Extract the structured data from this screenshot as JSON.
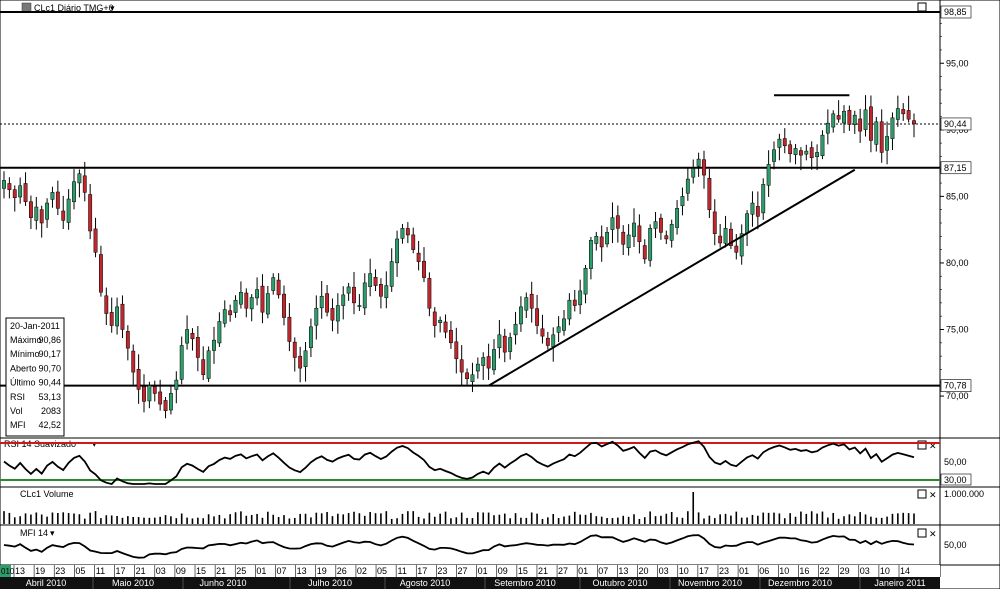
{
  "header": {
    "instrument_title": "CLc1 Diário TMG+0",
    "rsi_title": "RSI 14 Suavizado",
    "volume_title": "CLc1 Volume",
    "mfi_title": "MFI 14"
  },
  "info_box": {
    "date": "20-Jan-2011",
    "rows": [
      {
        "label": "Máximo",
        "value": "90,86"
      },
      {
        "label": "Mínimo",
        "value": "90,17"
      },
      {
        "label": "Aberto",
        "value": "90,70"
      },
      {
        "label": "Último",
        "value": "90,44"
      },
      {
        "label": "RSI",
        "value": "53,13"
      },
      {
        "label": "Vol",
        "value": "2083"
      },
      {
        "label": "MFI",
        "value": "42,52"
      }
    ]
  },
  "price_axis": {
    "ticks": [
      "95,00",
      "90,00",
      "85,00",
      "80,00",
      "75,00",
      "70,00"
    ],
    "tick_values": [
      95,
      90,
      85,
      80,
      75,
      70
    ],
    "labels": [
      {
        "text": "98,85",
        "value": 98.85
      },
      {
        "text": "90,44",
        "value": 90.44
      },
      {
        "text": "87,15",
        "value": 87.15
      },
      {
        "text": "70,78",
        "value": 70.78
      }
    ]
  },
  "rsi_axis": {
    "labels": [
      "50,00",
      "30,00"
    ]
  },
  "volume_axis": {
    "labels": [
      "1.000.000"
    ]
  },
  "mfi_axis": {
    "labels": [
      "50,00"
    ]
  },
  "time_axis": {
    "days": [
      "13",
      "19",
      "23",
      "05",
      "11",
      "17",
      "21",
      "03",
      "09",
      "15",
      "21",
      "25",
      "01",
      "07",
      "13",
      "19",
      "26",
      "02",
      "05",
      "11",
      "17",
      "23",
      "27",
      "01",
      "09",
      "15",
      "21",
      "27",
      "01",
      "07",
      "13",
      "20",
      "03",
      "10",
      "17",
      "23",
      "01",
      "06",
      "10",
      "16",
      "22",
      "29",
      "03",
      "10",
      "14"
    ],
    "months": [
      "Abril 2010",
      "Maio 2010",
      "Junho 2010",
      "Julho 2010",
      "Agosto 2010",
      "Setembro 2010",
      "Outubro 2010",
      "Novembro 2010",
      "Dezembro 2010",
      "Janeiro 2011"
    ]
  },
  "colors": {
    "up": "#2e9c6a",
    "down": "#c0272d",
    "rsi_upper": "#d01818",
    "rsi_lower": "#2a8a2a"
  },
  "chart_data": {
    "type": "candlestick",
    "ylim": [
      67,
      99
    ],
    "horizontal_levels": [
      98.85,
      87.15,
      70.78
    ],
    "last_price": 90.44,
    "closes": [
      86.2,
      85.5,
      84.9,
      85.8,
      84.6,
      83.4,
      84.2,
      83.0,
      84.5,
      85.3,
      84.1,
      83.2,
      84.8,
      86.1,
      86.7,
      85.3,
      82.4,
      80.8,
      77.8,
      76.2,
      75.3,
      76.7,
      75.0,
      73.6,
      71.8,
      70.5,
      69.6,
      70.8,
      70.2,
      69.4,
      68.9,
      70.2,
      71.2,
      73.8,
      75.0,
      74.3,
      72.9,
      71.6,
      73.4,
      74.2,
      75.6,
      76.5,
      76.1,
      77.2,
      77.8,
      76.6,
      77.4,
      78.0,
      76.3,
      77.7,
      78.9,
      77.6,
      75.9,
      74.1,
      72.9,
      72.1,
      73.4,
      75.2,
      76.6,
      77.5,
      76.3,
      75.7,
      76.8,
      77.6,
      78.2,
      77.0,
      76.8,
      78.5,
      79.2,
      78.3,
      77.5,
      78.3,
      80.1,
      81.8,
      82.6,
      82.1,
      81.0,
      80.1,
      78.9,
      76.6,
      75.3,
      75.7,
      74.8,
      74.0,
      72.8,
      71.8,
      71.3,
      71.6,
      72.4,
      72.9,
      72.1,
      73.5,
      74.6,
      73.3,
      74.4,
      75.4,
      76.7,
      77.4,
      76.6,
      75.3,
      74.5,
      73.8,
      74.6,
      75.2,
      75.8,
      77.2,
      76.8,
      77.9,
      79.6,
      81.7,
      82.0,
      81.2,
      82.3,
      83.4,
      82.6,
      81.4,
      82.1,
      83.0,
      81.6,
      80.3,
      82.6,
      83.1,
      82.3,
      81.8,
      82.9,
      84.1,
      85.0,
      86.3,
      87.1,
      87.8,
      86.6,
      84.0,
      82.2,
      81.5,
      82.6,
      81.3,
      80.8,
      82.2,
      83.7,
      84.5,
      83.5,
      85.9,
      87.4,
      88.5,
      89.3,
      88.8,
      88.2,
      88.6,
      88.1,
      88.4,
      87.9,
      88.3,
      89.6,
      90.5,
      91.2,
      90.8,
      91.4,
      90.4,
      91.1,
      89.9,
      91.5,
      89.2,
      90.6,
      88.3,
      89.5,
      90.9,
      91.6,
      91.2,
      90.8,
      90.44
    ],
    "rsi_band": {
      "upper": 70,
      "lower": 30
    },
    "trendlines": [
      {
        "from": [
          70.78,
          90
        ],
        "to": [
          87.0,
          158
        ]
      },
      {
        "from": [
          92.6,
          143
        ],
        "to": [
          92.6,
          157
        ]
      }
    ]
  }
}
